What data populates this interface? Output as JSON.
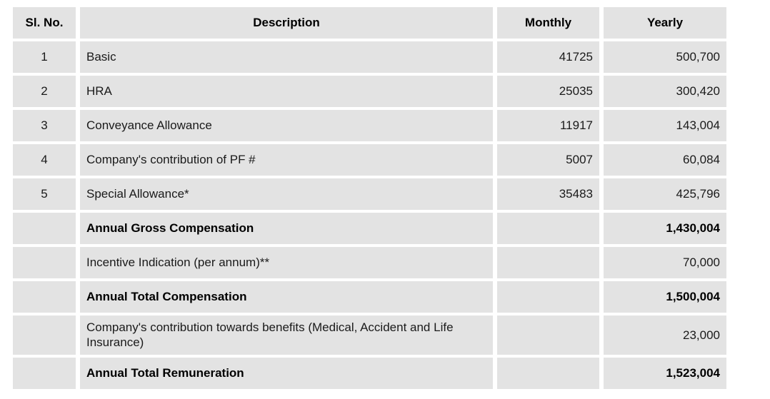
{
  "colors": {
    "cell_bg": "#e3e3e3",
    "page_bg": "#ffffff",
    "text": "#1a1a1a"
  },
  "table": {
    "columns": [
      {
        "key": "sl",
        "label": "Sl. No."
      },
      {
        "key": "description",
        "label": "Description"
      },
      {
        "key": "monthly",
        "label": "Monthly"
      },
      {
        "key": "yearly",
        "label": "Yearly"
      }
    ],
    "rows": [
      {
        "sl": "1",
        "description": "Basic",
        "monthly": "41725",
        "yearly": "500,700",
        "emphasis": false
      },
      {
        "sl": "2",
        "description": "HRA",
        "monthly": "25035",
        "yearly": "300,420",
        "emphasis": false
      },
      {
        "sl": "3",
        "description": "Conveyance Allowance",
        "monthly": "11917",
        "yearly": "143,004",
        "emphasis": false
      },
      {
        "sl": "4",
        "description": "Company's contribution of PF #",
        "monthly": "5007",
        "yearly": "60,084",
        "emphasis": false
      },
      {
        "sl": "5",
        "description": "Special Allowance*",
        "monthly": "35483",
        "yearly": "425,796",
        "emphasis": false
      },
      {
        "sl": "",
        "description": "Annual Gross Compensation",
        "monthly": "",
        "yearly": "1,430,004",
        "emphasis": true
      },
      {
        "sl": "",
        "description": "Incentive Indication (per annum)**",
        "monthly": "",
        "yearly": "70,000",
        "emphasis": false
      },
      {
        "sl": "",
        "description": "Annual Total Compensation",
        "monthly": "",
        "yearly": "1,500,004",
        "emphasis": true
      },
      {
        "sl": "",
        "description": "Company's contribution towards benefits (Medical, Accident and Life Insurance)",
        "monthly": "",
        "yearly": "23,000",
        "emphasis": false
      },
      {
        "sl": "",
        "description": "Annual Total Remuneration",
        "monthly": "",
        "yearly": "1,523,004",
        "emphasis": true
      }
    ]
  }
}
